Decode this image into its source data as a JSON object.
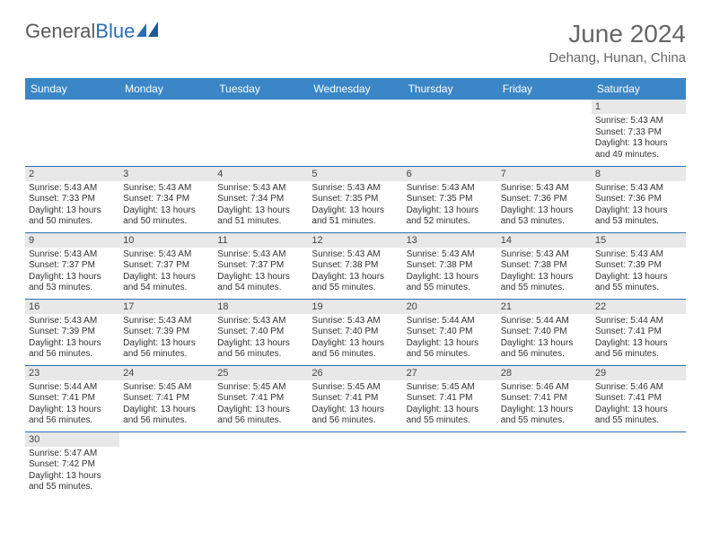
{
  "brand": {
    "part1": "General",
    "part2": "Blue"
  },
  "title": "June 2024",
  "location": "Dehang, Hunan, China",
  "colors": {
    "header_bg": "#3b86c6",
    "border": "#2a6fb5",
    "daynum_bg": "#e8e8e8",
    "text": "#333333",
    "title": "#666666"
  },
  "weekdays": [
    "Sunday",
    "Monday",
    "Tuesday",
    "Wednesday",
    "Thursday",
    "Friday",
    "Saturday"
  ],
  "weeks": [
    [
      null,
      null,
      null,
      null,
      null,
      null,
      {
        "n": "1",
        "sr": "5:43 AM",
        "ss": "7:33 PM",
        "dl": "13 hours and 49 minutes."
      }
    ],
    [
      {
        "n": "2",
        "sr": "5:43 AM",
        "ss": "7:33 PM",
        "dl": "13 hours and 50 minutes."
      },
      {
        "n": "3",
        "sr": "5:43 AM",
        "ss": "7:34 PM",
        "dl": "13 hours and 50 minutes."
      },
      {
        "n": "4",
        "sr": "5:43 AM",
        "ss": "7:34 PM",
        "dl": "13 hours and 51 minutes."
      },
      {
        "n": "5",
        "sr": "5:43 AM",
        "ss": "7:35 PM",
        "dl": "13 hours and 51 minutes."
      },
      {
        "n": "6",
        "sr": "5:43 AM",
        "ss": "7:35 PM",
        "dl": "13 hours and 52 minutes."
      },
      {
        "n": "7",
        "sr": "5:43 AM",
        "ss": "7:36 PM",
        "dl": "13 hours and 53 minutes."
      },
      {
        "n": "8",
        "sr": "5:43 AM",
        "ss": "7:36 PM",
        "dl": "13 hours and 53 minutes."
      }
    ],
    [
      {
        "n": "9",
        "sr": "5:43 AM",
        "ss": "7:37 PM",
        "dl": "13 hours and 53 minutes."
      },
      {
        "n": "10",
        "sr": "5:43 AM",
        "ss": "7:37 PM",
        "dl": "13 hours and 54 minutes."
      },
      {
        "n": "11",
        "sr": "5:43 AM",
        "ss": "7:37 PM",
        "dl": "13 hours and 54 minutes."
      },
      {
        "n": "12",
        "sr": "5:43 AM",
        "ss": "7:38 PM",
        "dl": "13 hours and 55 minutes."
      },
      {
        "n": "13",
        "sr": "5:43 AM",
        "ss": "7:38 PM",
        "dl": "13 hours and 55 minutes."
      },
      {
        "n": "14",
        "sr": "5:43 AM",
        "ss": "7:38 PM",
        "dl": "13 hours and 55 minutes."
      },
      {
        "n": "15",
        "sr": "5:43 AM",
        "ss": "7:39 PM",
        "dl": "13 hours and 55 minutes."
      }
    ],
    [
      {
        "n": "16",
        "sr": "5:43 AM",
        "ss": "7:39 PM",
        "dl": "13 hours and 56 minutes."
      },
      {
        "n": "17",
        "sr": "5:43 AM",
        "ss": "7:39 PM",
        "dl": "13 hours and 56 minutes."
      },
      {
        "n": "18",
        "sr": "5:43 AM",
        "ss": "7:40 PM",
        "dl": "13 hours and 56 minutes."
      },
      {
        "n": "19",
        "sr": "5:43 AM",
        "ss": "7:40 PM",
        "dl": "13 hours and 56 minutes."
      },
      {
        "n": "20",
        "sr": "5:44 AM",
        "ss": "7:40 PM",
        "dl": "13 hours and 56 minutes."
      },
      {
        "n": "21",
        "sr": "5:44 AM",
        "ss": "7:40 PM",
        "dl": "13 hours and 56 minutes."
      },
      {
        "n": "22",
        "sr": "5:44 AM",
        "ss": "7:41 PM",
        "dl": "13 hours and 56 minutes."
      }
    ],
    [
      {
        "n": "23",
        "sr": "5:44 AM",
        "ss": "7:41 PM",
        "dl": "13 hours and 56 minutes."
      },
      {
        "n": "24",
        "sr": "5:45 AM",
        "ss": "7:41 PM",
        "dl": "13 hours and 56 minutes."
      },
      {
        "n": "25",
        "sr": "5:45 AM",
        "ss": "7:41 PM",
        "dl": "13 hours and 56 minutes."
      },
      {
        "n": "26",
        "sr": "5:45 AM",
        "ss": "7:41 PM",
        "dl": "13 hours and 56 minutes."
      },
      {
        "n": "27",
        "sr": "5:45 AM",
        "ss": "7:41 PM",
        "dl": "13 hours and 55 minutes."
      },
      {
        "n": "28",
        "sr": "5:46 AM",
        "ss": "7:41 PM",
        "dl": "13 hours and 55 minutes."
      },
      {
        "n": "29",
        "sr": "5:46 AM",
        "ss": "7:41 PM",
        "dl": "13 hours and 55 minutes."
      }
    ],
    [
      {
        "n": "30",
        "sr": "5:47 AM",
        "ss": "7:42 PM",
        "dl": "13 hours and 55 minutes."
      },
      null,
      null,
      null,
      null,
      null,
      null
    ]
  ],
  "labels": {
    "sunrise": "Sunrise:",
    "sunset": "Sunset:",
    "daylight": "Daylight:"
  }
}
